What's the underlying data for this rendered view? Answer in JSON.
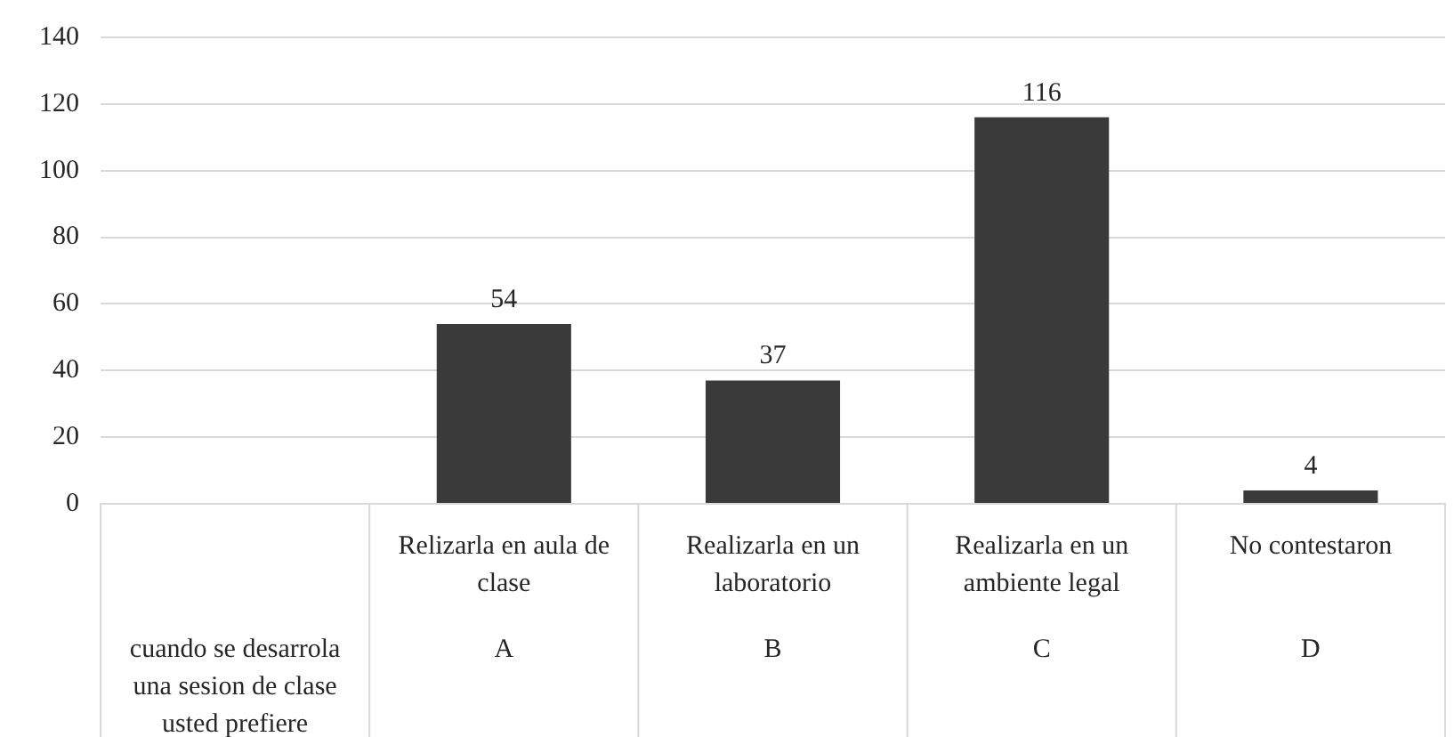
{
  "chart_data": {
    "type": "bar",
    "categories": [
      null,
      "Relizarla en aula de clase",
      "Realizarla en un laboratorio",
      "Realizarla en un ambiente legal",
      "No contestaron"
    ],
    "values": [
      null,
      54,
      37,
      116,
      4
    ],
    "color": "#3a3a3a",
    "ylim": [
      0,
      140
    ],
    "yticks": [
      0,
      20,
      40,
      60,
      80,
      100,
      120,
      140
    ],
    "grid": "y",
    "data_labels": true,
    "legend": false,
    "annotations": [
      "cuando se desarrola una sesion de clase usted prefiere",
      "A",
      "B",
      "C",
      "D"
    ]
  }
}
